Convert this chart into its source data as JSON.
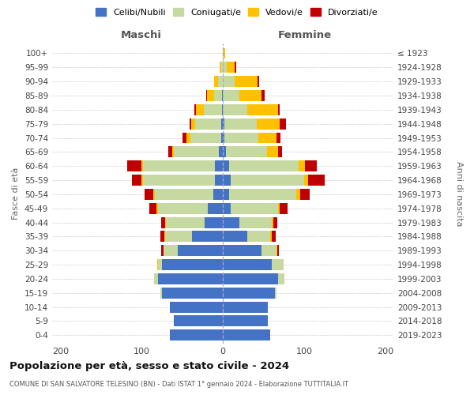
{
  "age_groups": [
    "0-4",
    "5-9",
    "10-14",
    "15-19",
    "20-24",
    "25-29",
    "30-34",
    "35-39",
    "40-44",
    "45-49",
    "50-54",
    "55-59",
    "60-64",
    "65-69",
    "70-74",
    "75-79",
    "80-84",
    "85-89",
    "90-94",
    "95-99",
    "100+"
  ],
  "birth_years": [
    "2019-2023",
    "2014-2018",
    "2009-2013",
    "2004-2008",
    "1999-2003",
    "1994-1998",
    "1989-1993",
    "1984-1988",
    "1979-1983",
    "1974-1978",
    "1969-1973",
    "1964-1968",
    "1959-1963",
    "1954-1958",
    "1949-1953",
    "1944-1948",
    "1939-1943",
    "1934-1938",
    "1929-1933",
    "1924-1928",
    "≤ 1923"
  ],
  "colors": {
    "celibi": "#4472c4",
    "coniugati": "#c5d9a0",
    "vedovi": "#ffc000",
    "divorziati": "#c00000"
  },
  "males": {
    "celibi": [
      65,
      60,
      65,
      75,
      80,
      75,
      55,
      38,
      22,
      18,
      12,
      10,
      10,
      5,
      2,
      2,
      1,
      1,
      0,
      0,
      0
    ],
    "coniugati": [
      0,
      0,
      0,
      2,
      5,
      5,
      18,
      33,
      48,
      62,
      72,
      88,
      88,
      55,
      38,
      32,
      22,
      10,
      6,
      2,
      0
    ],
    "vedovi": [
      0,
      0,
      0,
      0,
      0,
      1,
      0,
      1,
      1,
      2,
      2,
      2,
      2,
      2,
      5,
      5,
      10,
      8,
      5,
      2,
      0
    ],
    "divorziati": [
      0,
      0,
      0,
      0,
      0,
      0,
      3,
      5,
      5,
      8,
      10,
      12,
      18,
      5,
      5,
      2,
      2,
      1,
      0,
      0,
      0
    ]
  },
  "females": {
    "celibi": [
      58,
      55,
      55,
      64,
      68,
      60,
      48,
      30,
      20,
      10,
      8,
      10,
      8,
      4,
      2,
      2,
      0,
      0,
      0,
      0,
      0
    ],
    "coniugati": [
      0,
      0,
      0,
      2,
      8,
      15,
      18,
      28,
      40,
      58,
      82,
      90,
      85,
      50,
      42,
      40,
      30,
      20,
      15,
      5,
      1
    ],
    "vedovi": [
      0,
      0,
      0,
      0,
      0,
      0,
      1,
      2,
      2,
      2,
      5,
      5,
      8,
      14,
      22,
      28,
      38,
      28,
      28,
      10,
      2
    ],
    "divorziati": [
      0,
      0,
      0,
      0,
      0,
      0,
      2,
      5,
      5,
      10,
      12,
      20,
      15,
      5,
      5,
      8,
      2,
      4,
      2,
      2,
      0
    ]
  },
  "title": "Popolazione per età, sesso e stato civile - 2024",
  "subtitle": "COMUNE DI SAN SALVATORE TELESINO (BN) - Dati ISTAT 1° gennaio 2024 - Elaborazione TUTTITALIA.IT",
  "xlabel_left": "Maschi",
  "xlabel_right": "Femmine",
  "ylabel_left": "Fasce di età",
  "ylabel_right": "Anni di nascita",
  "xlim": 210,
  "legend_labels": [
    "Celibi/Nubili",
    "Coniugati/e",
    "Vedovi/e",
    "Divorziati/e"
  ]
}
